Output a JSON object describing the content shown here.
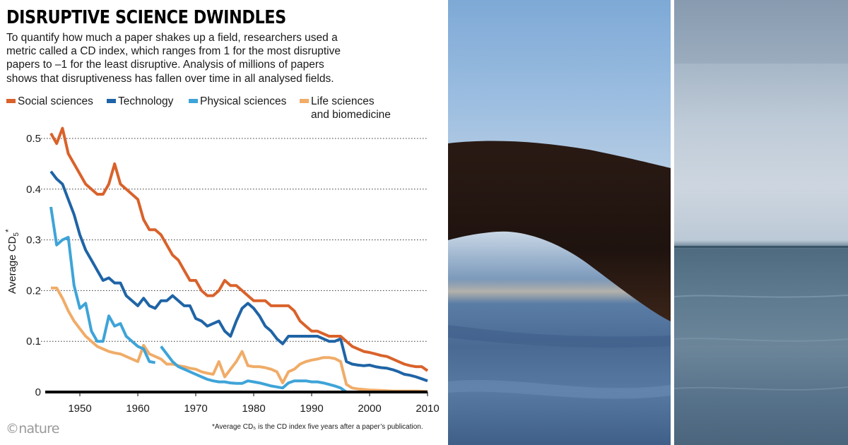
{
  "header": {
    "title": "DISRUPTIVE SCIENCE DWINDLES",
    "subtitle_lines": [
      "To quantify how much a paper shakes up a field, researchers used a",
      "metric called a CD index, which ranges from 1 for the most disruptive",
      "papers to –1 for the least disruptive. Analysis of millions of papers",
      "shows that disruptiveness has fallen over time in all analysed fields."
    ]
  },
  "legend": [
    {
      "label": "Social sciences",
      "color": "#d9622b"
    },
    {
      "label": "Technology",
      "color": "#1f64a6"
    },
    {
      "label": "Physical sciences",
      "color": "#3ea4d8"
    },
    {
      "label": "Life sciences",
      "label2": "and biomedicine",
      "color": "#f0ac68"
    }
  ],
  "chart_data": {
    "type": "line",
    "title": "DISRUPTIVE SCIENCE DWINDLES",
    "xlabel": "",
    "ylabel": "Average CD5*",
    "xlim": [
      1945,
      2010
    ],
    "ylim": [
      0,
      0.5
    ],
    "x_ticks": [
      1950,
      1960,
      1970,
      1980,
      1990,
      2000,
      2010
    ],
    "y_ticks": [
      {
        "value": 0,
        "label": "0"
      },
      {
        "value": 0.1,
        "label": "0.1"
      },
      {
        "value": 0.2,
        "label": "0.2"
      },
      {
        "value": 0.3,
        "label": "0.3"
      },
      {
        "value": 0.4,
        "label": "0.4"
      },
      {
        "value": 0.5,
        "label": "0.5"
      }
    ],
    "grid": "horizontal dotted",
    "series": [
      {
        "name": "Social sciences",
        "color": "#d9622b",
        "points": [
          [
            1945,
            0.51
          ],
          [
            1946,
            0.49
          ],
          [
            1947,
            0.52
          ],
          [
            1948,
            0.47
          ],
          [
            1949,
            0.45
          ],
          [
            1950,
            0.43
          ],
          [
            1951,
            0.41
          ],
          [
            1952,
            0.4
          ],
          [
            1953,
            0.39
          ],
          [
            1954,
            0.39
          ],
          [
            1955,
            0.41
          ],
          [
            1956,
            0.45
          ],
          [
            1957,
            0.41
          ],
          [
            1958,
            0.4
          ],
          [
            1959,
            0.39
          ],
          [
            1960,
            0.38
          ],
          [
            1961,
            0.34
          ],
          [
            1962,
            0.32
          ],
          [
            1963,
            0.32
          ],
          [
            1964,
            0.31
          ],
          [
            1965,
            0.29
          ],
          [
            1966,
            0.27
          ],
          [
            1967,
            0.26
          ],
          [
            1968,
            0.24
          ],
          [
            1969,
            0.22
          ],
          [
            1970,
            0.22
          ],
          [
            1971,
            0.2
          ],
          [
            1972,
            0.19
          ],
          [
            1973,
            0.19
          ],
          [
            1974,
            0.2
          ],
          [
            1975,
            0.22
          ],
          [
            1976,
            0.21
          ],
          [
            1977,
            0.21
          ],
          [
            1978,
            0.2
          ],
          [
            1979,
            0.19
          ],
          [
            1980,
            0.18
          ],
          [
            1981,
            0.18
          ],
          [
            1982,
            0.18
          ],
          [
            1983,
            0.17
          ],
          [
            1984,
            0.17
          ],
          [
            1985,
            0.17
          ],
          [
            1986,
            0.17
          ],
          [
            1987,
            0.16
          ],
          [
            1988,
            0.14
          ],
          [
            1989,
            0.13
          ],
          [
            1990,
            0.12
          ],
          [
            1991,
            0.12
          ],
          [
            1992,
            0.115
          ],
          [
            1993,
            0.11
          ],
          [
            1994,
            0.11
          ],
          [
            1995,
            0.11
          ],
          [
            1996,
            0.1
          ],
          [
            1997,
            0.09
          ],
          [
            1998,
            0.085
          ],
          [
            1999,
            0.08
          ],
          [
            2000,
            0.078
          ],
          [
            2001,
            0.075
          ],
          [
            2002,
            0.072
          ],
          [
            2003,
            0.07
          ],
          [
            2004,
            0.065
          ],
          [
            2005,
            0.06
          ],
          [
            2006,
            0.055
          ],
          [
            2007,
            0.052
          ],
          [
            2008,
            0.05
          ],
          [
            2009,
            0.05
          ],
          [
            2010,
            0.042
          ]
        ]
      },
      {
        "name": "Technology",
        "color": "#1f64a6",
        "points": [
          [
            1945,
            0.435
          ],
          [
            1946,
            0.42
          ],
          [
            1947,
            0.41
          ],
          [
            1948,
            0.38
          ],
          [
            1949,
            0.35
          ],
          [
            1950,
            0.31
          ],
          [
            1951,
            0.28
          ],
          [
            1952,
            0.26
          ],
          [
            1953,
            0.24
          ],
          [
            1954,
            0.22
          ],
          [
            1955,
            0.225
          ],
          [
            1956,
            0.215
          ],
          [
            1957,
            0.215
          ],
          [
            1958,
            0.19
          ],
          [
            1959,
            0.18
          ],
          [
            1960,
            0.17
          ],
          [
            1961,
            0.185
          ],
          [
            1962,
            0.17
          ],
          [
            1963,
            0.165
          ],
          [
            1964,
            0.18
          ],
          [
            1965,
            0.18
          ],
          [
            1966,
            0.19
          ],
          [
            1967,
            0.18
          ],
          [
            1968,
            0.17
          ],
          [
            1969,
            0.17
          ],
          [
            1970,
            0.145
          ],
          [
            1971,
            0.14
          ],
          [
            1972,
            0.13
          ],
          [
            1973,
            0.135
          ],
          [
            1974,
            0.14
          ],
          [
            1975,
            0.12
          ],
          [
            1976,
            0.11
          ],
          [
            1977,
            0.14
          ],
          [
            1978,
            0.165
          ],
          [
            1979,
            0.175
          ],
          [
            1980,
            0.165
          ],
          [
            1981,
            0.15
          ],
          [
            1982,
            0.13
          ],
          [
            1983,
            0.12
          ],
          [
            1984,
            0.105
          ],
          [
            1985,
            0.095
          ],
          [
            1986,
            0.11
          ],
          [
            1987,
            0.11
          ],
          [
            1988,
            0.11
          ],
          [
            1989,
            0.11
          ],
          [
            1990,
            0.11
          ],
          [
            1991,
            0.11
          ],
          [
            1992,
            0.105
          ],
          [
            1993,
            0.1
          ],
          [
            1994,
            0.1
          ],
          [
            1995,
            0.105
          ],
          [
            1996,
            0.06
          ],
          [
            1997,
            0.055
          ],
          [
            1998,
            0.053
          ],
          [
            1999,
            0.052
          ],
          [
            2000,
            0.053
          ],
          [
            2001,
            0.05
          ],
          [
            2002,
            0.048
          ],
          [
            2003,
            0.047
          ],
          [
            2004,
            0.044
          ],
          [
            2005,
            0.04
          ],
          [
            2006,
            0.035
          ],
          [
            2007,
            0.033
          ],
          [
            2008,
            0.03
          ],
          [
            2009,
            0.026
          ],
          [
            2010,
            0.022
          ]
        ]
      },
      {
        "name": "Physical sciences",
        "color": "#3ea4d8",
        "points": [
          [
            1945,
            0.365
          ],
          [
            1946,
            0.29
          ],
          [
            1947,
            0.3
          ],
          [
            1948,
            0.305
          ],
          [
            1949,
            0.21
          ],
          [
            1950,
            0.165
          ],
          [
            1951,
            0.175
          ],
          [
            1952,
            0.12
          ],
          [
            1953,
            0.1
          ],
          [
            1954,
            0.1
          ],
          [
            1955,
            0.15
          ],
          [
            1956,
            0.13
          ],
          [
            1957,
            0.135
          ],
          [
            1958,
            0.11
          ],
          [
            1959,
            0.1
          ],
          [
            1960,
            0.09
          ],
          [
            1961,
            0.085
          ],
          [
            1962,
            0.06
          ],
          [
            1963,
            0.058
          ],
          [
            1963.99,
            null
          ],
          [
            1964,
            0.09
          ],
          [
            1965,
            0.075
          ],
          [
            1966,
            0.06
          ],
          [
            1967,
            0.05
          ],
          [
            1968,
            0.045
          ],
          [
            1969,
            0.04
          ],
          [
            1970,
            0.035
          ],
          [
            1971,
            0.03
          ],
          [
            1972,
            0.025
          ],
          [
            1973,
            0.022
          ],
          [
            1974,
            0.02
          ],
          [
            1975,
            0.02
          ],
          [
            1976,
            0.018
          ],
          [
            1977,
            0.017
          ],
          [
            1978,
            0.017
          ],
          [
            1979,
            0.022
          ],
          [
            1980,
            0.02
          ],
          [
            1981,
            0.018
          ],
          [
            1982,
            0.015
          ],
          [
            1983,
            0.012
          ],
          [
            1984,
            0.01
          ],
          [
            1985,
            0.008
          ],
          [
            1986,
            0.018
          ],
          [
            1987,
            0.022
          ],
          [
            1988,
            0.022
          ],
          [
            1989,
            0.022
          ],
          [
            1990,
            0.02
          ],
          [
            1991,
            0.02
          ],
          [
            1992,
            0.018
          ],
          [
            1993,
            0.015
          ],
          [
            1994,
            0.012
          ],
          [
            1995,
            0.008
          ],
          [
            1996,
            0.0
          ]
        ]
      },
      {
        "name": "Life sciences and biomedicine",
        "color": "#f0ac68",
        "points": [
          [
            1945,
            0.205
          ],
          [
            1946,
            0.205
          ],
          [
            1947,
            0.185
          ],
          [
            1948,
            0.16
          ],
          [
            1949,
            0.14
          ],
          [
            1950,
            0.125
          ],
          [
            1951,
            0.11
          ],
          [
            1952,
            0.1
          ],
          [
            1953,
            0.09
          ],
          [
            1954,
            0.085
          ],
          [
            1955,
            0.08
          ],
          [
            1956,
            0.077
          ],
          [
            1957,
            0.075
          ],
          [
            1958,
            0.07
          ],
          [
            1959,
            0.065
          ],
          [
            1960,
            0.06
          ],
          [
            1961,
            0.092
          ],
          [
            1962,
            0.075
          ],
          [
            1963,
            0.07
          ],
          [
            1964,
            0.065
          ],
          [
            1965,
            0.055
          ],
          [
            1966,
            0.055
          ],
          [
            1967,
            0.052
          ],
          [
            1968,
            0.05
          ],
          [
            1969,
            0.047
          ],
          [
            1970,
            0.045
          ],
          [
            1971,
            0.04
          ],
          [
            1972,
            0.037
          ],
          [
            1973,
            0.035
          ],
          [
            1974,
            0.06
          ],
          [
            1975,
            0.03
          ],
          [
            1976,
            0.045
          ],
          [
            1977,
            0.06
          ],
          [
            1978,
            0.08
          ],
          [
            1979,
            0.052
          ],
          [
            1980,
            0.05
          ],
          [
            1981,
            0.05
          ],
          [
            1982,
            0.048
          ],
          [
            1983,
            0.045
          ],
          [
            1984,
            0.04
          ],
          [
            1985,
            0.018
          ],
          [
            1986,
            0.04
          ],
          [
            1987,
            0.045
          ],
          [
            1988,
            0.055
          ],
          [
            1989,
            0.06
          ],
          [
            1990,
            0.063
          ],
          [
            1991,
            0.065
          ],
          [
            1992,
            0.068
          ],
          [
            1993,
            0.068
          ],
          [
            1994,
            0.066
          ],
          [
            1995,
            0.06
          ],
          [
            1996,
            0.015
          ],
          [
            1997,
            0.008
          ],
          [
            1998,
            0.006
          ],
          [
            1999,
            0.005
          ],
          [
            2000,
            0.004
          ],
          [
            2002,
            0.003
          ],
          [
            2004,
            0.002
          ],
          [
            2006,
            0.002
          ],
          [
            2008,
            0.002
          ],
          [
            2010,
            0.001
          ]
        ]
      }
    ]
  },
  "footer": {
    "logo": "©nature",
    "footnote": "*Average CD₅ is the CD index five years after a paper’s publication."
  }
}
